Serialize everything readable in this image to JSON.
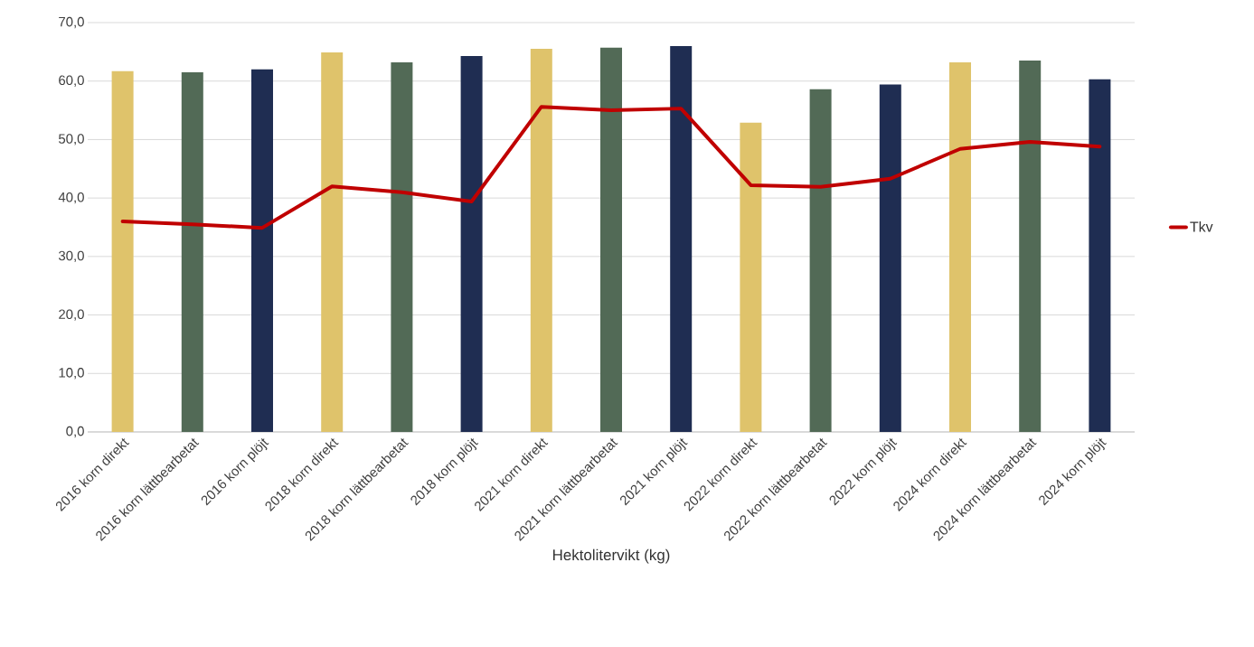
{
  "chart_data": {
    "type": "bar",
    "xlabel": "Hektolitervikt (kg)",
    "categories": [
      "2016 korn direkt",
      "2016 korn lättbearbetat",
      "2016 korn plöjt",
      "2018 korn direkt",
      "2018 korn lättbearbetat",
      "2018 korn plöjt",
      "2021 korn direkt",
      "2021 korn lättbearbetat",
      "2021 korn plöjt",
      "2022 korn direkt",
      "2022 korn lättbearbetat",
      "2022 korn plöjt",
      "2024 korn direkt",
      "2024 korn lättbearbetat",
      "2024 korn plöjt"
    ],
    "series": [
      {
        "colors": [
          "#dfc36b",
          "#526a56",
          "#1f2d52",
          "#dfc36b",
          "#526a56",
          "#1f2d52",
          "#dfc36b",
          "#526a56",
          "#1f2d52",
          "#dfc36b",
          "#526a56",
          "#1f2d52",
          "#dfc36b",
          "#526a56",
          "#1f2d52"
        ],
        "values": [
          61.7,
          61.5,
          62.0,
          64.9,
          63.2,
          64.3,
          65.5,
          65.7,
          66.0,
          52.9,
          58.6,
          59.4,
          63.2,
          63.5,
          60.3
        ]
      },
      {
        "type": "line",
        "name": "Tkv",
        "color": "#c00000",
        "values": [
          36.0,
          35.5,
          34.9,
          42.0,
          41.0,
          39.4,
          55.6,
          55.0,
          55.3,
          42.2,
          41.9,
          43.3,
          48.4,
          49.6,
          48.8
        ]
      }
    ],
    "ylim": [
      0,
      70
    ],
    "yticks": [
      {
        "value": 0,
        "label": "0,0"
      },
      {
        "value": 10,
        "label": "10,0"
      },
      {
        "value": 20,
        "label": "20,0"
      },
      {
        "value": 30,
        "label": "30,0"
      },
      {
        "value": 40,
        "label": "40,0"
      },
      {
        "value": 50,
        "label": "50,0"
      },
      {
        "value": 60,
        "label": "60,0"
      },
      {
        "value": 70,
        "label": "70,0"
      }
    ],
    "grid": "y",
    "legend": "right",
    "marker": "none",
    "line_style": "solid"
  }
}
